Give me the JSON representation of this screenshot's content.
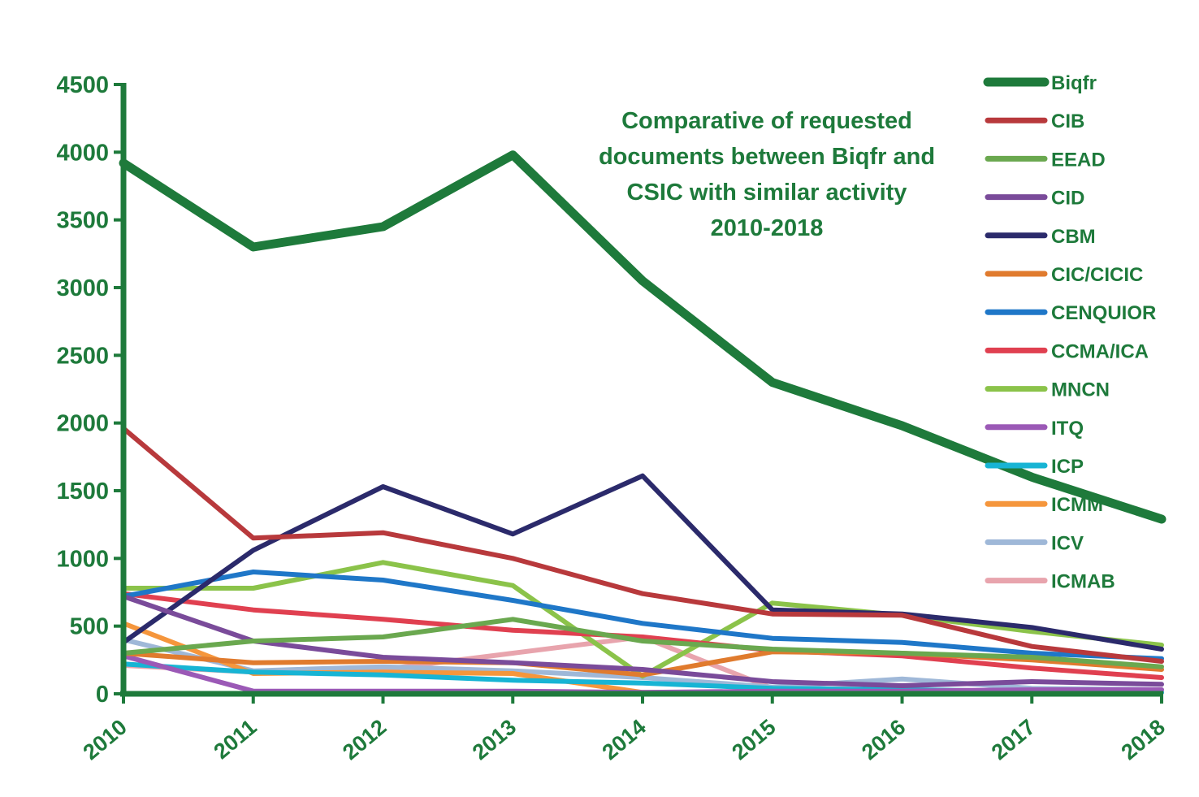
{
  "chart_data": {
    "type": "line",
    "title_lines": [
      "Comparative of requested",
      "documents between Biqfr and",
      "CSIC with similar activity",
      "2010-2018"
    ],
    "xlabel": "",
    "ylabel": "",
    "x": [
      "2010",
      "2011",
      "2012",
      "2013",
      "2014",
      "2015",
      "2016",
      "2017",
      "2018"
    ],
    "ylim": [
      0,
      4500
    ],
    "yticks": [
      "0",
      "500",
      "1000",
      "1500",
      "2000",
      "2500",
      "3000",
      "3500",
      "4000",
      "4500"
    ],
    "grid": false,
    "legend_position": "right",
    "series": [
      {
        "name": "Biqfr",
        "color": "#1e7a3b",
        "values": [
          3920,
          3300,
          3450,
          3980,
          3050,
          2300,
          1980,
          1600,
          1290
        ]
      },
      {
        "name": "CIB",
        "color": "#b8393c",
        "values": [
          1960,
          1150,
          1190,
          1000,
          740,
          590,
          580,
          350,
          240
        ]
      },
      {
        "name": "EEAD",
        "color": "#6aa84f",
        "values": [
          300,
          390,
          420,
          550,
          390,
          330,
          300,
          270,
          200
        ]
      },
      {
        "name": "CID",
        "color": "#7a4b9a",
        "values": [
          720,
          390,
          270,
          230,
          180,
          90,
          60,
          90,
          70
        ]
      },
      {
        "name": "CBM",
        "color": "#2b2a6b",
        "values": [
          380,
          1060,
          1530,
          1180,
          1610,
          620,
          590,
          490,
          330
        ]
      },
      {
        "name": "CIC/CICIC",
        "color": "#e07b2e",
        "values": [
          300,
          230,
          240,
          230,
          140,
          310,
          300,
          250,
          180
        ]
      },
      {
        "name": "CENQUIOR",
        "color": "#1f77c8",
        "values": [
          720,
          900,
          840,
          690,
          520,
          410,
          380,
          300,
          260
        ]
      },
      {
        "name": "CCMA/ICA",
        "color": "#e04050",
        "values": [
          740,
          620,
          550,
          470,
          420,
          320,
          280,
          190,
          120
        ]
      },
      {
        "name": "MNCN",
        "color": "#8bc34a",
        "values": [
          780,
          780,
          970,
          800,
          130,
          670,
          580,
          460,
          360
        ]
      },
      {
        "name": "ITQ",
        "color": "#9b59b6",
        "values": [
          280,
          20,
          20,
          20,
          10,
          20,
          20,
          30,
          30
        ]
      },
      {
        "name": "ICP",
        "color": "#17b4d4",
        "values": [
          220,
          160,
          140,
          100,
          80,
          40,
          30,
          20,
          10
        ]
      },
      {
        "name": "ICMM",
        "color": "#f5963c",
        "values": [
          520,
          150,
          160,
          150,
          10,
          10,
          10,
          10,
          10
        ]
      },
      {
        "name": "ICV",
        "color": "#9fb8d8",
        "values": [
          400,
          170,
          200,
          170,
          120,
          50,
          110,
          40,
          30
        ]
      },
      {
        "name": "ICMAB",
        "color": "#e8a4ad",
        "values": [
          210,
          160,
          180,
          300,
          420,
          40,
          30,
          20,
          10
        ]
      }
    ]
  }
}
